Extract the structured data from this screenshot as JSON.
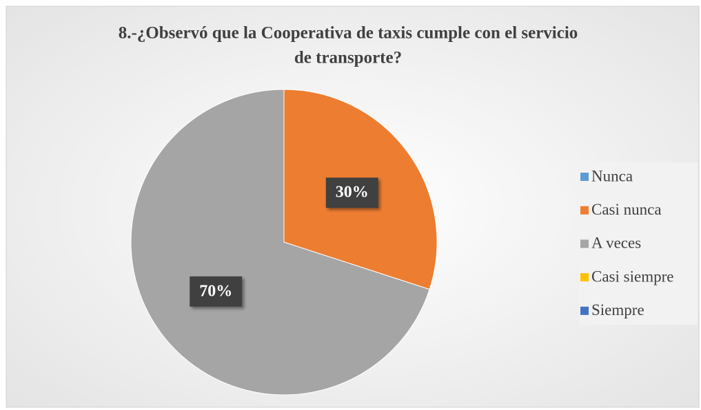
{
  "chart_data": {
    "type": "pie",
    "title": [
      "8.-¿Observó que la Cooperativa de taxis  cumple con el servicio",
      "de transporte?"
    ],
    "categories": [
      "Nunca",
      "Casi nunca",
      "A veces",
      "Casi siempre",
      "Siempre"
    ],
    "values": [
      0,
      30,
      70,
      0,
      0
    ],
    "value_labels": [
      null,
      "30%",
      "70%",
      null,
      null
    ],
    "colors": [
      "#5b9bd5",
      "#ed7d31",
      "#a5a5a5",
      "#ffc000",
      "#4472c4"
    ],
    "legend": "right"
  }
}
